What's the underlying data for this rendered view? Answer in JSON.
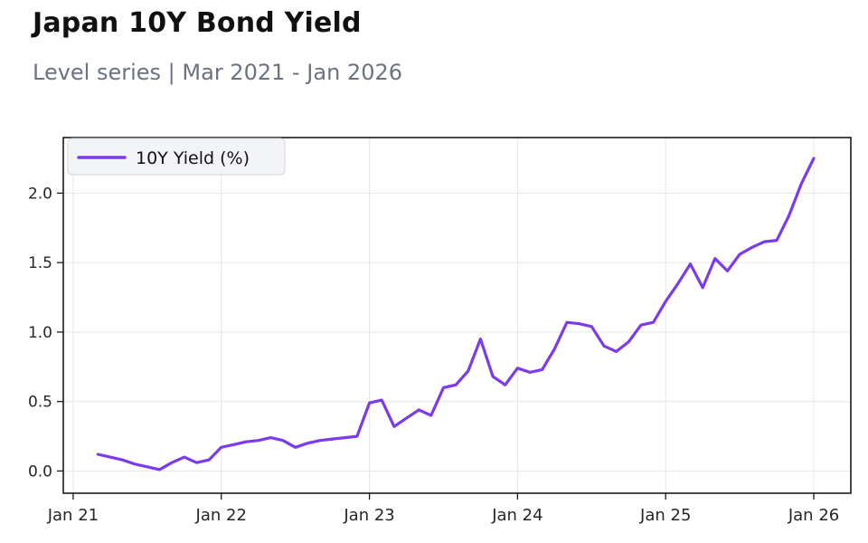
{
  "header": {
    "title": "Japan 10Y Bond Yield",
    "subtitle": "Level series | Mar 2021 - Jan 2026"
  },
  "colors": {
    "line": "#7c3aed",
    "grid": "#e8e8ec",
    "spine": "#1a1a1a",
    "tick_label": "#262626",
    "title": "#111111",
    "subtitle": "#6b7280",
    "legend_bg": "#f3f4f7",
    "legend_border": "#d8dade",
    "background": "#ffffff"
  },
  "legend": {
    "label": "10Y Yield (%)",
    "position": "upper left"
  },
  "chart_data": {
    "type": "line",
    "title": "Japan 10Y Bond Yield",
    "subtitle": "Level series | Mar 2021 - Jan 2026",
    "grid": true,
    "legend_position": "upper left",
    "x_axis": {
      "tick_labels": [
        "Jan 21",
        "Jan 22",
        "Jan 23",
        "Jan 24",
        "Jan 25",
        "Jan 26"
      ],
      "tick_month_offsets": [
        0,
        12,
        24,
        36,
        48,
        60
      ],
      "xlim_months": [
        -0.8,
        63.0
      ]
    },
    "y_axis": {
      "tick_labels": [
        "0.0",
        "0.5",
        "1.0",
        "1.5",
        "2.0"
      ],
      "tick_values": [
        0.0,
        0.5,
        1.0,
        1.5,
        2.0
      ],
      "ylim": [
        -0.16,
        2.4
      ]
    },
    "series": [
      {
        "name": "10Y Yield (%)",
        "color": "#7c3aed",
        "frequency": "monthly",
        "start": "Mar 2021",
        "start_month_offset": 2,
        "values": [
          0.12,
          0.1,
          0.08,
          0.05,
          0.03,
          0.01,
          0.06,
          0.1,
          0.06,
          0.08,
          0.17,
          0.19,
          0.21,
          0.22,
          0.24,
          0.22,
          0.17,
          0.2,
          0.22,
          0.23,
          0.24,
          0.25,
          0.49,
          0.51,
          0.32,
          0.38,
          0.44,
          0.4,
          0.6,
          0.62,
          0.72,
          0.95,
          0.68,
          0.62,
          0.74,
          0.71,
          0.73,
          0.88,
          1.07,
          1.06,
          1.04,
          0.9,
          0.86,
          0.93,
          1.05,
          1.07,
          1.22,
          1.35,
          1.49,
          1.32,
          1.53,
          1.44,
          1.56,
          1.61,
          1.65,
          1.66,
          1.84,
          2.07,
          2.25
        ]
      }
    ]
  }
}
